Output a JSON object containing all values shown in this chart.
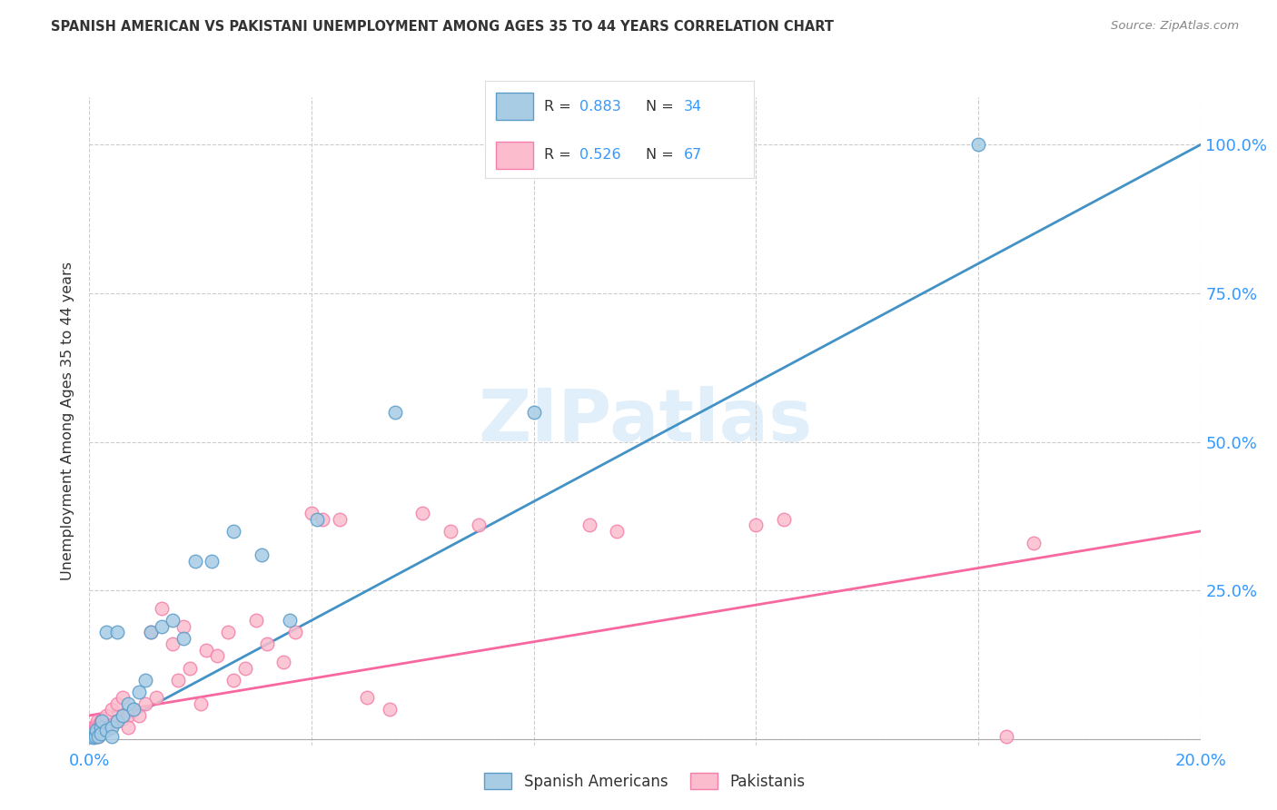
{
  "title": "SPANISH AMERICAN VS PAKISTANI UNEMPLOYMENT AMONG AGES 35 TO 44 YEARS CORRELATION CHART",
  "source": "Source: ZipAtlas.com",
  "ylabel": "Unemployment Among Ages 35 to 44 years",
  "xlim": [
    0.0,
    0.2
  ],
  "ylim": [
    -0.01,
    1.08
  ],
  "ytick_vals": [
    0.0,
    0.25,
    0.5,
    0.75,
    1.0
  ],
  "ytick_labels": [
    "",
    "25.0%",
    "50.0%",
    "75.0%",
    "100.0%"
  ],
  "xtick_vals": [
    0.0,
    0.04,
    0.08,
    0.12,
    0.16,
    0.2
  ],
  "xtick_labels": [
    "0.0%",
    "",
    "",
    "",
    "",
    "20.0%"
  ],
  "watermark": "ZIPatlas",
  "legend_r1": "0.883",
  "legend_n1": "34",
  "legend_r2": "0.526",
  "legend_n2": "67",
  "legend_label1": "Spanish Americans",
  "legend_label2": "Pakistanis",
  "color_blue_fill": "#a8cce4",
  "color_blue_edge": "#5b9dc9",
  "color_blue_line": "#4292c6",
  "color_pink_fill": "#fbbdcd",
  "color_pink_edge": "#f47faa",
  "color_pink_line": "#f768a1",
  "color_blue_text": "#3399ff",
  "color_dark_text": "#333333",
  "background_color": "#ffffff",
  "grid_color": "#cccccc",
  "sa_x": [
    0.0003,
    0.0005,
    0.0007,
    0.001,
    0.001,
    0.0012,
    0.0015,
    0.002,
    0.002,
    0.0022,
    0.003,
    0.003,
    0.004,
    0.004,
    0.005,
    0.005,
    0.006,
    0.007,
    0.008,
    0.009,
    0.01,
    0.011,
    0.013,
    0.015,
    0.017,
    0.019,
    0.022,
    0.026,
    0.031,
    0.036,
    0.041,
    0.055,
    0.08,
    0.16
  ],
  "sa_y": [
    0.005,
    0.008,
    0.003,
    0.01,
    0.005,
    0.015,
    0.005,
    0.02,
    0.01,
    0.03,
    0.015,
    0.18,
    0.02,
    0.005,
    0.03,
    0.18,
    0.04,
    0.06,
    0.05,
    0.08,
    0.1,
    0.18,
    0.19,
    0.2,
    0.17,
    0.3,
    0.3,
    0.35,
    0.31,
    0.2,
    0.37,
    0.55,
    0.55,
    1.0
  ],
  "pk_x": [
    0.0002,
    0.0003,
    0.0004,
    0.0005,
    0.0006,
    0.0006,
    0.0007,
    0.0008,
    0.0009,
    0.001,
    0.001,
    0.0012,
    0.0013,
    0.0014,
    0.0015,
    0.0015,
    0.0016,
    0.0017,
    0.0018,
    0.002,
    0.002,
    0.0022,
    0.0023,
    0.003,
    0.003,
    0.004,
    0.004,
    0.005,
    0.005,
    0.006,
    0.006,
    0.007,
    0.007,
    0.008,
    0.009,
    0.01,
    0.011,
    0.012,
    0.013,
    0.015,
    0.016,
    0.017,
    0.018,
    0.02,
    0.021,
    0.023,
    0.025,
    0.026,
    0.028,
    0.03,
    0.032,
    0.035,
    0.037,
    0.04,
    0.042,
    0.045,
    0.05,
    0.054,
    0.06,
    0.065,
    0.07,
    0.09,
    0.095,
    0.12,
    0.125,
    0.165,
    0.17
  ],
  "pk_y": [
    0.005,
    0.01,
    0.005,
    0.015,
    0.005,
    0.02,
    0.01,
    0.015,
    0.008,
    0.02,
    0.01,
    0.025,
    0.01,
    0.03,
    0.005,
    0.02,
    0.015,
    0.025,
    0.02,
    0.03,
    0.015,
    0.025,
    0.03,
    0.04,
    0.02,
    0.05,
    0.025,
    0.03,
    0.06,
    0.035,
    0.07,
    0.04,
    0.02,
    0.05,
    0.04,
    0.06,
    0.18,
    0.07,
    0.22,
    0.16,
    0.1,
    0.19,
    0.12,
    0.06,
    0.15,
    0.14,
    0.18,
    0.1,
    0.12,
    0.2,
    0.16,
    0.13,
    0.18,
    0.38,
    0.37,
    0.37,
    0.07,
    0.05,
    0.38,
    0.35,
    0.36,
    0.36,
    0.35,
    0.36,
    0.37,
    0.005,
    0.33
  ],
  "blue_line_x": [
    0.0,
    0.2
  ],
  "blue_line_y": [
    0.0,
    1.0
  ],
  "pink_line_x": [
    0.0,
    0.2
  ],
  "pink_line_y": [
    0.04,
    0.35
  ]
}
